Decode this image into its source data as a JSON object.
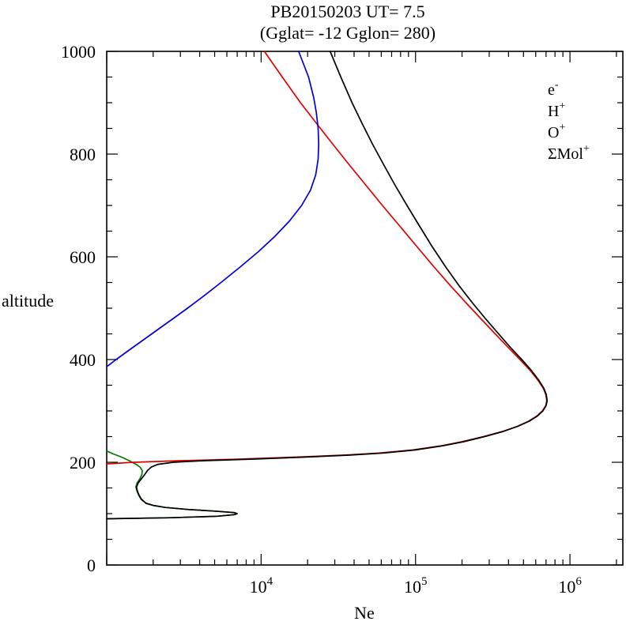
{
  "chart_data": {
    "type": "line",
    "title": "PB20150203   UT=  7.5",
    "subtitle": "(Gglat= -12   Gglon=  280)",
    "xlabel": "Ne",
    "ylabel": "altitude",
    "x_scale": "log",
    "xlim": [
      1000,
      2200000
    ],
    "ylim": [
      0,
      1000
    ],
    "x_major_ticks_exponents": [
      4,
      5,
      6
    ],
    "y_major_ticks": [
      0,
      200,
      400,
      600,
      800,
      1000
    ],
    "y_minor_step": 50,
    "grid": false,
    "legend_position": "upper right",
    "legend_order": [
      "electrons",
      "h-plus",
      "o-plus",
      "sum-mol-ions"
    ],
    "series": [
      {
        "name": "sum-mol-ions",
        "label_base": "ΣMol",
        "label_sup": "+",
        "color": "#007a00",
        "points": [
          [
            90,
            1000
          ],
          [
            92,
            2600
          ],
          [
            95,
            5200
          ],
          [
            98,
            6700
          ],
          [
            100,
            7000
          ],
          [
            102,
            6700
          ],
          [
            105,
            5000
          ],
          [
            108,
            3400
          ],
          [
            112,
            2400
          ],
          [
            116,
            2000
          ],
          [
            120,
            1800
          ],
          [
            128,
            1670
          ],
          [
            136,
            1610
          ],
          [
            144,
            1570
          ],
          [
            152,
            1545
          ],
          [
            160,
            1575
          ],
          [
            168,
            1640
          ],
          [
            176,
            1690
          ],
          [
            184,
            1700
          ],
          [
            190,
            1650
          ],
          [
            196,
            1550
          ],
          [
            203,
            1400
          ],
          [
            210,
            1250
          ],
          [
            217,
            1090
          ],
          [
            222,
            1000
          ]
        ]
      },
      {
        "name": "o-plus",
        "label_base": "O",
        "label_sup": "+",
        "color": "#e00000",
        "points": [
          [
            197,
            1000
          ],
          [
            200,
            1500
          ],
          [
            203,
            3000
          ],
          [
            206,
            7000
          ],
          [
            210,
            16500
          ],
          [
            214,
            35000
          ],
          [
            218,
            58000
          ],
          [
            224,
            96000
          ],
          [
            232,
            146000
          ],
          [
            240,
            200000
          ],
          [
            250,
            276000
          ],
          [
            260,
            366000
          ],
          [
            270,
            456000
          ],
          [
            280,
            540000
          ],
          [
            290,
            610000
          ],
          [
            300,
            663000
          ],
          [
            310,
            696000
          ],
          [
            320,
            708000
          ],
          [
            332,
            697000
          ],
          [
            344,
            672000
          ],
          [
            360,
            620000
          ],
          [
            380,
            548000
          ],
          [
            400,
            475000
          ],
          [
            425,
            394000
          ],
          [
            450,
            328000
          ],
          [
            480,
            264000
          ],
          [
            510,
            213000
          ],
          [
            545,
            167000
          ],
          [
            580,
            132000
          ],
          [
            620,
            102000
          ],
          [
            660,
            79000
          ],
          [
            700,
            61000
          ],
          [
            740,
            47500
          ],
          [
            780,
            37000
          ],
          [
            820,
            29000
          ],
          [
            860,
            22800
          ],
          [
            900,
            18000
          ],
          [
            950,
            13700
          ],
          [
            1000,
            10500
          ]
        ]
      },
      {
        "name": "electrons",
        "label_base": "e",
        "label_sup": "-",
        "color": "#000000",
        "points": [
          [
            90,
            1000
          ],
          [
            92,
            2600
          ],
          [
            95,
            5200
          ],
          [
            98,
            6700
          ],
          [
            100,
            7000
          ],
          [
            102,
            6700
          ],
          [
            105,
            5000
          ],
          [
            108,
            3400
          ],
          [
            112,
            2400
          ],
          [
            116,
            2000
          ],
          [
            120,
            1800
          ],
          [
            128,
            1680
          ],
          [
            136,
            1620
          ],
          [
            144,
            1580
          ],
          [
            152,
            1560
          ],
          [
            160,
            1600
          ],
          [
            168,
            1680
          ],
          [
            176,
            1760
          ],
          [
            184,
            1840
          ],
          [
            191,
            1950
          ],
          [
            196,
            2150
          ],
          [
            200,
            2700
          ],
          [
            203,
            4300
          ],
          [
            206,
            8500
          ],
          [
            210,
            19000
          ],
          [
            214,
            38000
          ],
          [
            218,
            62000
          ],
          [
            224,
            100000
          ],
          [
            232,
            150000
          ],
          [
            240,
            205000
          ],
          [
            250,
            280000
          ],
          [
            260,
            370000
          ],
          [
            270,
            460000
          ],
          [
            280,
            545000
          ],
          [
            290,
            615000
          ],
          [
            300,
            668000
          ],
          [
            310,
            700000
          ],
          [
            320,
            712000
          ],
          [
            332,
            702000
          ],
          [
            344,
            678000
          ],
          [
            360,
            628000
          ],
          [
            380,
            558000
          ],
          [
            400,
            487000
          ],
          [
            425,
            408000
          ],
          [
            450,
            345000
          ],
          [
            480,
            283000
          ],
          [
            510,
            234000
          ],
          [
            545,
            190000
          ],
          [
            580,
            157000
          ],
          [
            620,
            128000
          ],
          [
            660,
            106000
          ],
          [
            700,
            88000
          ],
          [
            740,
            73500
          ],
          [
            780,
            62000
          ],
          [
            820,
            52500
          ],
          [
            860,
            45000
          ],
          [
            900,
            38800
          ],
          [
            950,
            32800
          ],
          [
            1000,
            28000
          ]
        ]
      },
      {
        "name": "h-plus",
        "label_base": "H",
        "label_sup": "+",
        "color": "#0000dd",
        "points": [
          [
            386,
            1000
          ],
          [
            400,
            1150
          ],
          [
            420,
            1420
          ],
          [
            440,
            1760
          ],
          [
            460,
            2180
          ],
          [
            480,
            2700
          ],
          [
            500,
            3340
          ],
          [
            525,
            4300
          ],
          [
            550,
            5500
          ],
          [
            580,
            7300
          ],
          [
            610,
            9600
          ],
          [
            640,
            12300
          ],
          [
            670,
            15300
          ],
          [
            700,
            18300
          ],
          [
            730,
            20900
          ],
          [
            760,
            22600
          ],
          [
            790,
            23400
          ],
          [
            820,
            23600
          ],
          [
            850,
            23400
          ],
          [
            880,
            22800
          ],
          [
            910,
            21900
          ],
          [
            950,
            20300
          ],
          [
            1000,
            17500
          ]
        ]
      }
    ]
  }
}
